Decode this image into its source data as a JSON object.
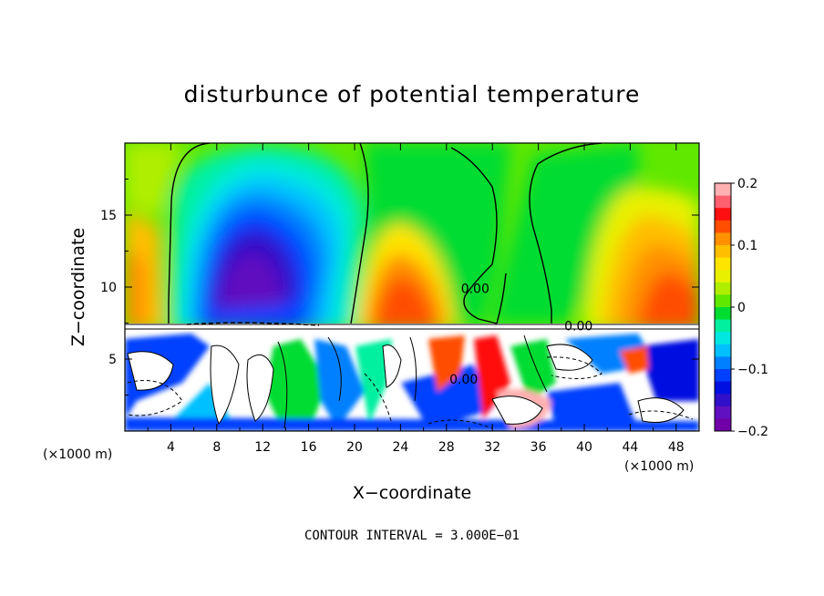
{
  "chart_data": {
    "type": "heatmap",
    "title": "disturbunce of potential temperature",
    "xlabel": "X−coordinate",
    "ylabel": "Z−coordinate",
    "x_unit_left": "(×1000 m)",
    "x_unit_right": "(×1000 m)",
    "footer": "CONTOUR INTERVAL = 3.000E−01",
    "xlim": [
      0,
      50
    ],
    "ylim": [
      0,
      20
    ],
    "x_ticks": [
      4,
      8,
      12,
      16,
      20,
      24,
      28,
      32,
      36,
      40,
      44,
      48
    ],
    "y_ticks": [
      5,
      10,
      15
    ],
    "contour_labels": [
      {
        "text": "0.00",
        "x": 30.5,
        "y": 9.6
      },
      {
        "text": "0.00",
        "x": 39.5,
        "y": 7.0
      },
      {
        "text": "0.00",
        "x": 29.5,
        "y": 3.3
      }
    ],
    "colorbar": {
      "min": -0.2,
      "max": 0.2,
      "tick_values": [
        0.2,
        0.1,
        0,
        -0.1,
        -0.2
      ],
      "tick_labels": [
        "0.2",
        "0.1",
        "0",
        "−0.1",
        "−0.2"
      ],
      "colors": [
        "#ffb0b0",
        "#ff6070",
        "#ff1010",
        "#ff4e00",
        "#ff9000",
        "#ffbe00",
        "#ffe400",
        "#e8f000",
        "#b0ee00",
        "#60e800",
        "#00dc30",
        "#00f0a0",
        "#00e8e0",
        "#00c0ff",
        "#0080ff",
        "#0040ff",
        "#0010e0",
        "#3010c8",
        "#6010c0",
        "#7000a8"
      ]
    }
  }
}
